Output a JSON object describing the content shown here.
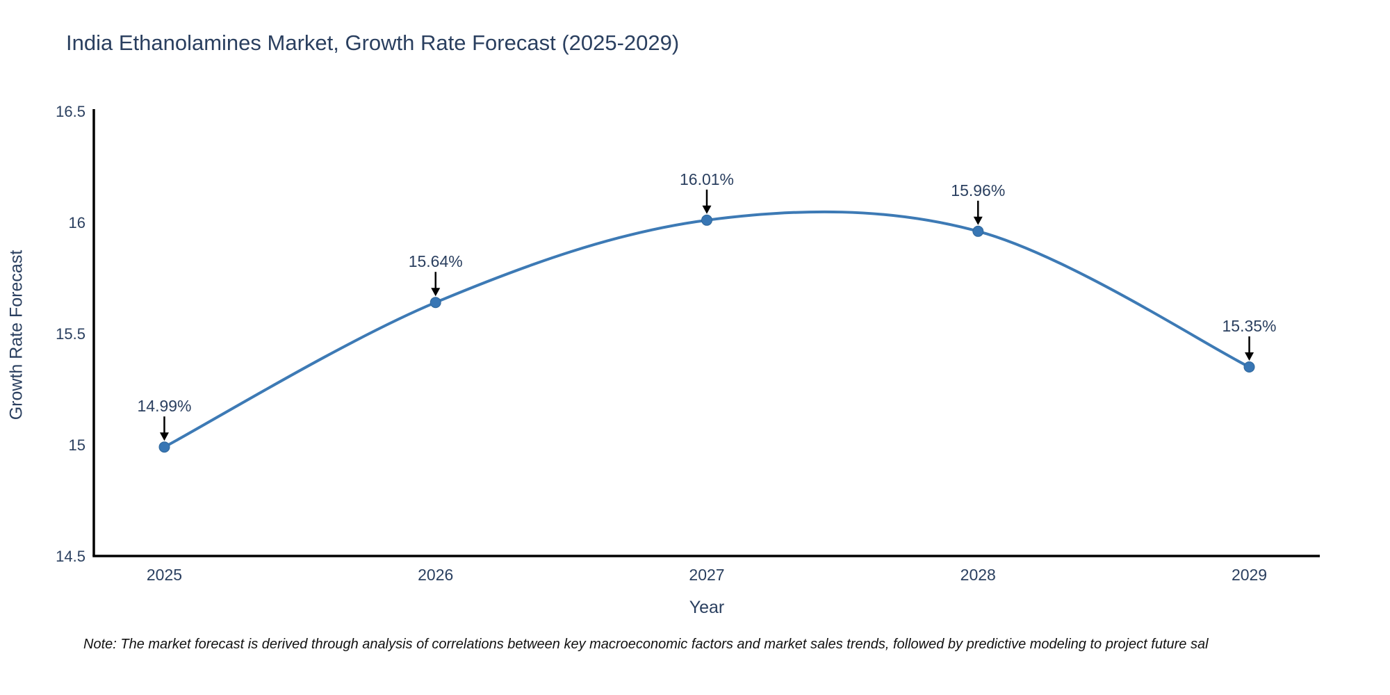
{
  "title": {
    "text": "India Ethanolamines Market, Growth Rate Forecast (2025-2029)",
    "color": "#2a3f5f"
  },
  "note": {
    "text": "Note: The market forecast is derived through analysis of correlations between key macroeconomic factors and market sales trends, followed by predictive modeling to project future sal"
  },
  "chart_data": {
    "type": "line",
    "title": "India Ethanolamines Market, Growth Rate Forecast (2025-2029)",
    "xlabel": "Year",
    "ylabel": "Growth Rate Forecast",
    "x": [
      2025,
      2026,
      2027,
      2028,
      2029
    ],
    "series": [
      {
        "name": "Growth Rate Forecast",
        "values": [
          14.99,
          15.64,
          16.01,
          15.96,
          15.35
        ]
      }
    ],
    "point_labels": [
      "14.99%",
      "15.64%",
      "16.01%",
      "15.96%",
      "15.35%"
    ],
    "xtick_labels": [
      "2025",
      "2026",
      "2027",
      "2028",
      "2029"
    ],
    "ytick_values": [
      14.5,
      15,
      15.5,
      16,
      16.5
    ],
    "ytick_labels": [
      "14.5",
      "15",
      "15.5",
      "16",
      "16.5"
    ],
    "xlim": [
      2024.74,
      2029.26
    ],
    "ylim": [
      14.5,
      16.5
    ],
    "line_shape": "spline",
    "grid": false,
    "legend": "none",
    "markers": true,
    "annotations_have_arrows": true,
    "colors": {
      "line": "#3d7ab5",
      "marker_fill": "#3876b4",
      "marker_edge": "#2f6699",
      "axis": "#000000",
      "tick_text": "#2a3f5f",
      "annotation_text": "#2a3f5f",
      "arrow": "#000000",
      "background": "#ffffff"
    }
  }
}
